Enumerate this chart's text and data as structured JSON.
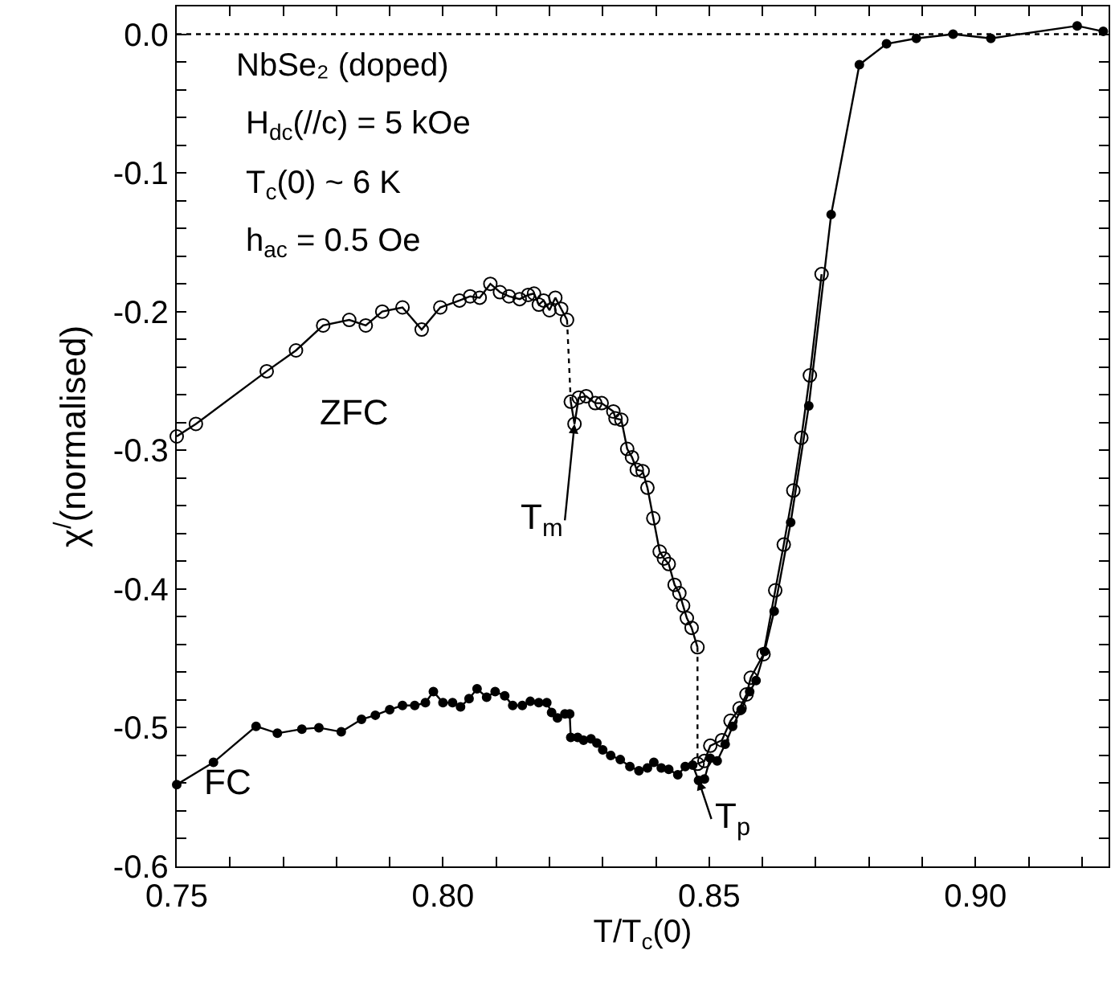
{
  "chart_data": {
    "type": "line",
    "xlabel": "T/T$_{c}$(0)",
    "ylabel": "χ$^{/}$(normalised)",
    "xlim": [
      0.75,
      0.925
    ],
    "ylim": [
      -0.6,
      0.02
    ],
    "xticks": [
      {
        "value": 0.75,
        "label": "0.75"
      },
      {
        "value": 0.76,
        "label": null
      },
      {
        "value": 0.77,
        "label": null
      },
      {
        "value": 0.78,
        "label": null
      },
      {
        "value": 0.79,
        "label": null
      },
      {
        "value": 0.8,
        "label": "0.80"
      },
      {
        "value": 0.81,
        "label": null
      },
      {
        "value": 0.82,
        "label": null
      },
      {
        "value": 0.83,
        "label": null
      },
      {
        "value": 0.84,
        "label": null
      },
      {
        "value": 0.85,
        "label": "0.85"
      },
      {
        "value": 0.86,
        "label": null
      },
      {
        "value": 0.87,
        "label": null
      },
      {
        "value": 0.88,
        "label": null
      },
      {
        "value": 0.89,
        "label": null
      },
      {
        "value": 0.9,
        "label": "0.90"
      },
      {
        "value": 0.91,
        "label": null
      },
      {
        "value": 0.92,
        "label": null
      }
    ],
    "yticks": [
      {
        "value": 0,
        "label": "0.0"
      },
      {
        "value": -0.02,
        "label": null
      },
      {
        "value": -0.04,
        "label": null
      },
      {
        "value": -0.06,
        "label": null
      },
      {
        "value": -0.08,
        "label": null
      },
      {
        "value": -0.1,
        "label": "-0.1"
      },
      {
        "value": -0.12,
        "label": null
      },
      {
        "value": -0.14,
        "label": null
      },
      {
        "value": -0.16,
        "label": null
      },
      {
        "value": -0.18,
        "label": null
      },
      {
        "value": -0.2,
        "label": "-0.2"
      },
      {
        "value": -0.22,
        "label": null
      },
      {
        "value": -0.24,
        "label": null
      },
      {
        "value": -0.26,
        "label": null
      },
      {
        "value": -0.28,
        "label": null
      },
      {
        "value": -0.3,
        "label": "-0.3"
      },
      {
        "value": -0.32,
        "label": null
      },
      {
        "value": -0.34,
        "label": null
      },
      {
        "value": -0.36,
        "label": null
      },
      {
        "value": -0.38,
        "label": null
      },
      {
        "value": -0.4,
        "label": "-0.4"
      },
      {
        "value": -0.42,
        "label": null
      },
      {
        "value": -0.44,
        "label": null
      },
      {
        "value": -0.46,
        "label": null
      },
      {
        "value": -0.48,
        "label": null
      },
      {
        "value": -0.5,
        "label": "-0.5"
      },
      {
        "value": -0.52,
        "label": null
      },
      {
        "value": -0.54,
        "label": null
      },
      {
        "value": -0.56,
        "label": null
      },
      {
        "value": -0.58,
        "label": null
      },
      {
        "value": -0.6,
        "label": "-0.6"
      }
    ],
    "series": [
      {
        "color": "#000000",
        "marker": "circle-open",
        "line_style": "solid",
        "x": [
          0.75,
          0.7536,
          0.7669,
          0.7724,
          0.7775,
          0.7824,
          0.7855,
          0.7886,
          0.7924,
          0.796,
          0.7995,
          0.8031,
          0.8051,
          0.8069,
          0.8089,
          0.8107,
          0.8124,
          0.8144,
          0.816,
          0.8171,
          0.818,
          0.8189,
          0.82,
          0.8211,
          0.8222,
          0.8233
        ],
        "values": [
          -0.29,
          -0.281,
          -0.243,
          -0.228,
          -0.21,
          -0.206,
          -0.21,
          -0.2,
          -0.197,
          -0.213,
          -0.197,
          -0.192,
          -0.189,
          -0.19,
          -0.18,
          -0.186,
          -0.189,
          -0.191,
          -0.188,
          -0.187,
          -0.195,
          -0.192,
          -0.199,
          -0.19,
          -0.198,
          -0.206
        ]
      },
      {
        "color": "#000000",
        "marker": "circle-open",
        "line_style": "solid",
        "x": [
          0.824,
          0.8247,
          0.8255,
          0.8269,
          0.8286,
          0.8298,
          0.832,
          0.8324,
          0.8335,
          0.8346,
          0.8355,
          0.8364,
          0.8375,
          0.8384,
          0.8395,
          0.8407,
          0.8415,
          0.8424,
          0.8435,
          0.8444,
          0.8451,
          0.8458,
          0.8467,
          0.8478
        ],
        "values": [
          -0.265,
          -0.281,
          -0.262,
          -0.261,
          -0.266,
          -0.266,
          -0.272,
          -0.277,
          -0.278,
          -0.299,
          -0.305,
          -0.314,
          -0.315,
          -0.327,
          -0.349,
          -0.373,
          -0.378,
          -0.382,
          -0.397,
          -0.403,
          -0.412,
          -0.421,
          -0.428,
          -0.442
        ]
      },
      {
        "color": "#000000",
        "marker": "circle-open",
        "line_style": "solid",
        "x": [
          0.8478,
          0.8491,
          0.8502,
          0.8524,
          0.854,
          0.8557,
          0.857,
          0.8578,
          0.8602,
          0.8624,
          0.864,
          0.8658,
          0.8673,
          0.8689,
          0.8711
        ],
        "values": [
          -0.526,
          -0.524,
          -0.513,
          -0.509,
          -0.495,
          -0.486,
          -0.476,
          -0.464,
          -0.447,
          -0.401,
          -0.368,
          -0.329,
          -0.291,
          -0.246,
          -0.173
        ]
      },
      {
        "color": "#000000",
        "marker": "none",
        "line_style": "dotted",
        "x": [
          0.8233,
          0.824
        ],
        "values": [
          -0.206,
          -0.265
        ]
      },
      {
        "color": "#000000",
        "marker": "none",
        "line_style": "dotted",
        "x": [
          0.8478,
          0.8478
        ],
        "values": [
          -0.442,
          -0.526
        ]
      },
      {
        "color": "#000000",
        "marker": "circle",
        "line_style": "solid",
        "x": [
          0.75,
          0.7569,
          0.7649,
          0.7689,
          0.7735,
          0.7767,
          0.7809,
          0.7847,
          0.7873,
          0.79,
          0.7924,
          0.7947,
          0.7967,
          0.7982,
          0.8,
          0.8018,
          0.8033,
          0.8049,
          0.8064,
          0.8082,
          0.8098,
          0.8116,
          0.8131,
          0.8149,
          0.8164,
          0.818,
          0.8195,
          0.8204,
          0.8215,
          0.8229,
          0.8238,
          0.824,
          0.8253,
          0.8264,
          0.8278,
          0.8289,
          0.83,
          0.8315,
          0.8333,
          0.8351,
          0.8368,
          0.8384,
          0.8396,
          0.841,
          0.8424,
          0.8441,
          0.8455,
          0.8469,
          0.848,
          0.8491,
          0.8502,
          0.8515,
          0.853,
          0.8544,
          0.856,
          0.8576,
          0.8588,
          0.8604,
          0.8622,
          0.8653,
          0.8687,
          0.8729,
          0.8782,
          0.8833,
          0.8889,
          0.8958,
          0.9029,
          0.9191,
          0.924
        ],
        "values": [
          -0.541,
          -0.525,
          -0.499,
          -0.504,
          -0.501,
          -0.5,
          -0.503,
          -0.494,
          -0.491,
          -0.487,
          -0.484,
          -0.484,
          -0.482,
          -0.474,
          -0.482,
          -0.482,
          -0.485,
          -0.479,
          -0.472,
          -0.478,
          -0.474,
          -0.477,
          -0.484,
          -0.484,
          -0.481,
          -0.482,
          -0.482,
          -0.489,
          -0.493,
          -0.49,
          -0.49,
          -0.507,
          -0.507,
          -0.509,
          -0.508,
          -0.511,
          -0.516,
          -0.52,
          -0.523,
          -0.528,
          -0.531,
          -0.529,
          -0.525,
          -0.529,
          -0.53,
          -0.534,
          -0.528,
          -0.527,
          -0.538,
          -0.537,
          -0.522,
          -0.524,
          -0.512,
          -0.499,
          -0.487,
          -0.474,
          -0.466,
          -0.445,
          -0.416,
          -0.352,
          -0.268,
          -0.13,
          -0.022,
          -0.007,
          -0.003,
          0.0,
          -0.003,
          0.006,
          0.002
        ]
      }
    ],
    "ref_lines": [
      {
        "axis": "y",
        "value": 0,
        "label": null,
        "line_style": "dotted",
        "color": "#000000"
      }
    ],
    "annotations": [
      "NbSe₂ (doped)",
      "H$_{dc}$(//c) = 5 kOe",
      "T$_{c}$(0) ~ 6 K",
      "h$_{ac}$ = 0.5 Oe",
      "ZFC",
      "FC",
      {
        "text": "T$_{m}$",
        "x": 0.8247,
        "y": -0.281
      },
      {
        "text": "T$_{p}$",
        "x": 0.848,
        "y": -0.538
      }
    ]
  }
}
